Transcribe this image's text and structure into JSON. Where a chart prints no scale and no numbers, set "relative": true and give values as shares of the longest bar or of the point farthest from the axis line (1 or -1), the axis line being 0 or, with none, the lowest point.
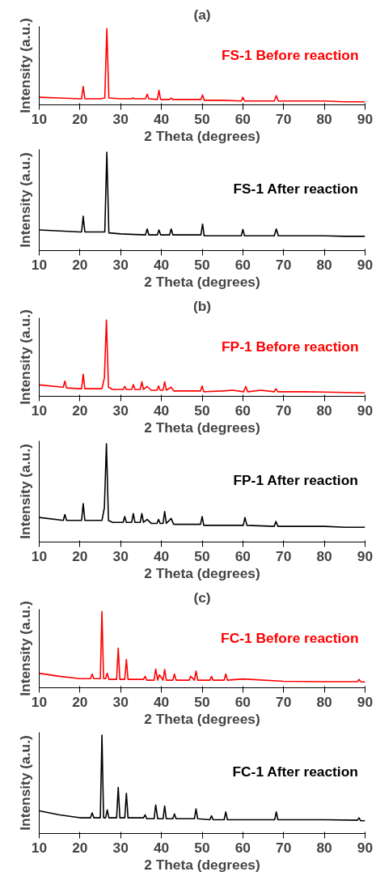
{
  "chart_data": [
    {
      "type": "line",
      "title": "(a)",
      "xlabel": "2 Theta (degrees)",
      "ylabel": "Intensity (a.u.)",
      "xlim": [
        10,
        90
      ],
      "xticks": [
        10,
        20,
        30,
        40,
        50,
        60,
        70,
        80,
        90
      ],
      "relative": true,
      "grid": false,
      "series": [
        {
          "name": "FS-1 Before reaction",
          "color": "#ff0000",
          "x": [
            10,
            15,
            20,
            20.4,
            20.8,
            21.2,
            25,
            26.1,
            26.6,
            27.1,
            30,
            32.6,
            33,
            33.4,
            36.1,
            36.5,
            36.9,
            39,
            39.4,
            39.8,
            42,
            42.4,
            42.8,
            49.7,
            50.1,
            50.5,
            55,
            59.6,
            60,
            60.4,
            67.7,
            68.2,
            68.7,
            75,
            80,
            85,
            90
          ],
          "values": [
            0.1,
            0.09,
            0.08,
            0.08,
            0.24,
            0.08,
            0.08,
            0.09,
            1.0,
            0.09,
            0.08,
            0.08,
            0.09,
            0.08,
            0.08,
            0.14,
            0.08,
            0.07,
            0.19,
            0.07,
            0.07,
            0.09,
            0.07,
            0.07,
            0.13,
            0.06,
            0.06,
            0.05,
            0.1,
            0.05,
            0.05,
            0.12,
            0.05,
            0.05,
            0.05,
            0.04,
            0.04
          ]
        }
      ]
    },
    {
      "type": "line",
      "xlabel": "2 Theta (degrees)",
      "ylabel": "Intensity (a.u.)",
      "xlim": [
        10,
        90
      ],
      "xticks": [
        10,
        20,
        30,
        40,
        50,
        60,
        70,
        80,
        90
      ],
      "relative": true,
      "grid": false,
      "series": [
        {
          "name": "FS-1 After reaction",
          "color": "#000000",
          "x": [
            10,
            15,
            20,
            20.4,
            20.8,
            21.2,
            25,
            26.1,
            26.6,
            27.1,
            30,
            36.1,
            36.5,
            36.9,
            39,
            39.4,
            39.8,
            42,
            42.4,
            42.8,
            49.7,
            50.1,
            50.5,
            55,
            59.6,
            60,
            60.4,
            67.7,
            68.2,
            68.7,
            75,
            80,
            85,
            90
          ],
          "values": [
            0.21,
            0.2,
            0.19,
            0.19,
            0.35,
            0.19,
            0.19,
            0.19,
            1.0,
            0.18,
            0.17,
            0.16,
            0.22,
            0.16,
            0.16,
            0.21,
            0.16,
            0.16,
            0.22,
            0.16,
            0.16,
            0.27,
            0.15,
            0.15,
            0.15,
            0.215,
            0.15,
            0.15,
            0.22,
            0.15,
            0.15,
            0.15,
            0.145,
            0.145
          ]
        }
      ]
    },
    {
      "type": "line",
      "title": "(b)",
      "xlabel": "2 Theta (degrees)",
      "ylabel": "Intensity (a.u.)",
      "xlim": [
        10,
        90
      ],
      "xticks": [
        10,
        20,
        30,
        40,
        50,
        60,
        70,
        80,
        90
      ],
      "relative": true,
      "grid": false,
      "series": [
        {
          "name": "FP-1 Before reaction",
          "color": "#ff0000",
          "x": [
            10,
            15.9,
            16.3,
            16.7,
            20,
            20.4,
            20.8,
            21.2,
            25.4,
            26,
            26.5,
            27,
            28,
            30.6,
            31,
            31.4,
            32.7,
            33.1,
            33.5,
            34.8,
            35.2,
            35.6,
            36.5,
            37.5,
            38.9,
            39.3,
            39.7,
            40.4,
            40.8,
            41.2,
            42.4,
            43,
            45,
            49.6,
            50,
            50.4,
            55,
            57.5,
            60.2,
            60.7,
            61.2,
            64.5,
            67.7,
            68.1,
            68.6,
            75,
            80,
            85,
            90
          ],
          "values": [
            0.15,
            0.12,
            0.2,
            0.11,
            0.1,
            0.1,
            0.29,
            0.1,
            0.1,
            0.24,
            1.0,
            0.12,
            0.09,
            0.09,
            0.13,
            0.09,
            0.09,
            0.155,
            0.09,
            0.09,
            0.19,
            0.09,
            0.13,
            0.08,
            0.08,
            0.135,
            0.08,
            0.08,
            0.19,
            0.08,
            0.12,
            0.07,
            0.07,
            0.07,
            0.135,
            0.06,
            0.07,
            0.08,
            0.06,
            0.13,
            0.06,
            0.08,
            0.06,
            0.1,
            0.06,
            0.06,
            0.055,
            0.05,
            0.045
          ]
        }
      ]
    },
    {
      "type": "line",
      "xlabel": "2 Theta (degrees)",
      "ylabel": "Intensity (a.u.)",
      "xlim": [
        10,
        90
      ],
      "xticks": [
        10,
        20,
        30,
        40,
        50,
        60,
        70,
        80,
        90
      ],
      "relative": true,
      "grid": false,
      "series": [
        {
          "name": "FP-1 After reaction",
          "color": "#000000",
          "x": [
            10,
            15.9,
            16.3,
            16.7,
            20,
            20.4,
            20.8,
            21.2,
            25.4,
            26,
            26.5,
            27,
            28,
            30.6,
            31,
            31.4,
            32.7,
            33.1,
            33.5,
            34.8,
            35.2,
            35.6,
            36.5,
            37.5,
            38.9,
            39.3,
            39.7,
            40.4,
            40.8,
            41.2,
            42.4,
            43,
            45,
            49.6,
            50,
            50.4,
            55,
            60.1,
            60.5,
            61,
            67.7,
            68.1,
            68.6,
            75,
            80,
            85,
            90
          ],
          "values": [
            0.25,
            0.22,
            0.28,
            0.22,
            0.22,
            0.22,
            0.39,
            0.22,
            0.22,
            0.35,
            1.0,
            0.22,
            0.2,
            0.2,
            0.26,
            0.2,
            0.2,
            0.29,
            0.2,
            0.2,
            0.29,
            0.2,
            0.23,
            0.19,
            0.19,
            0.23,
            0.19,
            0.19,
            0.31,
            0.19,
            0.24,
            0.18,
            0.18,
            0.18,
            0.26,
            0.17,
            0.17,
            0.17,
            0.25,
            0.17,
            0.16,
            0.21,
            0.16,
            0.16,
            0.16,
            0.15,
            0.15
          ]
        }
      ]
    },
    {
      "type": "line",
      "title": "(c)",
      "xlabel": "2 Theta (degrees)",
      "ylabel": "Intensity (a.u.)",
      "xlim": [
        10,
        90
      ],
      "xticks": [
        10,
        20,
        30,
        40,
        50,
        60,
        70,
        80,
        90
      ],
      "relative": true,
      "grid": false,
      "series": [
        {
          "name": "FC-1 Before reaction",
          "color": "#ff0000",
          "x": [
            10,
            15,
            20,
            22.6,
            23,
            23.4,
            25,
            25.4,
            25.8,
            26.3,
            26.7,
            27.1,
            29,
            29.4,
            29.8,
            31,
            31.4,
            31.8,
            35.6,
            36,
            36.4,
            38.2,
            38.6,
            39.1,
            39.5,
            40.4,
            40.8,
            41.2,
            42.8,
            43.2,
            43.6,
            46.8,
            47.2,
            48.1,
            48.5,
            48.9,
            51.9,
            52.3,
            52.7,
            55.4,
            55.8,
            56.2,
            60,
            70,
            80,
            88.1,
            88.5,
            88.9,
            90
          ],
          "values": [
            0.19,
            0.15,
            0.12,
            0.12,
            0.18,
            0.12,
            0.12,
            1.0,
            0.12,
            0.12,
            0.19,
            0.11,
            0.11,
            0.52,
            0.11,
            0.11,
            0.37,
            0.11,
            0.11,
            0.15,
            0.1,
            0.1,
            0.245,
            0.1,
            0.17,
            0.1,
            0.24,
            0.1,
            0.1,
            0.18,
            0.1,
            0.1,
            0.15,
            0.1,
            0.22,
            0.1,
            0.1,
            0.15,
            0.1,
            0.1,
            0.18,
            0.1,
            0.115,
            0.085,
            0.08,
            0.08,
            0.11,
            0.08,
            0.076
          ]
        }
      ]
    },
    {
      "type": "line",
      "xlabel": "2 Theta (degrees)",
      "ylabel": "Intensity (a.u.)",
      "xlim": [
        10,
        90
      ],
      "xticks": [
        10,
        20,
        30,
        40,
        50,
        60,
        70,
        80,
        90
      ],
      "relative": true,
      "grid": false,
      "series": [
        {
          "name": "FC-1 After reaction",
          "color": "#000000",
          "x": [
            10,
            15,
            20,
            22.6,
            23,
            23.4,
            25,
            25.4,
            25.8,
            26.3,
            26.7,
            27.1,
            29,
            29.4,
            29.8,
            31,
            31.4,
            31.8,
            35.6,
            36,
            36.4,
            38.2,
            38.6,
            39.1,
            40.4,
            40.8,
            41.2,
            42.8,
            43.2,
            43.6,
            48.1,
            48.5,
            48.9,
            51.9,
            52.3,
            52.7,
            55.4,
            55.8,
            56.2,
            60,
            67.8,
            68.2,
            68.6,
            70,
            80,
            88.1,
            88.5,
            88.9,
            90
          ],
          "values": [
            0.23,
            0.19,
            0.16,
            0.16,
            0.21,
            0.16,
            0.16,
            1.0,
            0.16,
            0.16,
            0.24,
            0.16,
            0.16,
            0.47,
            0.16,
            0.16,
            0.41,
            0.16,
            0.16,
            0.19,
            0.15,
            0.15,
            0.29,
            0.15,
            0.15,
            0.28,
            0.15,
            0.15,
            0.2,
            0.15,
            0.15,
            0.25,
            0.15,
            0.14,
            0.18,
            0.14,
            0.14,
            0.22,
            0.14,
            0.14,
            0.14,
            0.22,
            0.14,
            0.14,
            0.14,
            0.135,
            0.16,
            0.13,
            0.13
          ]
        }
      ]
    }
  ]
}
